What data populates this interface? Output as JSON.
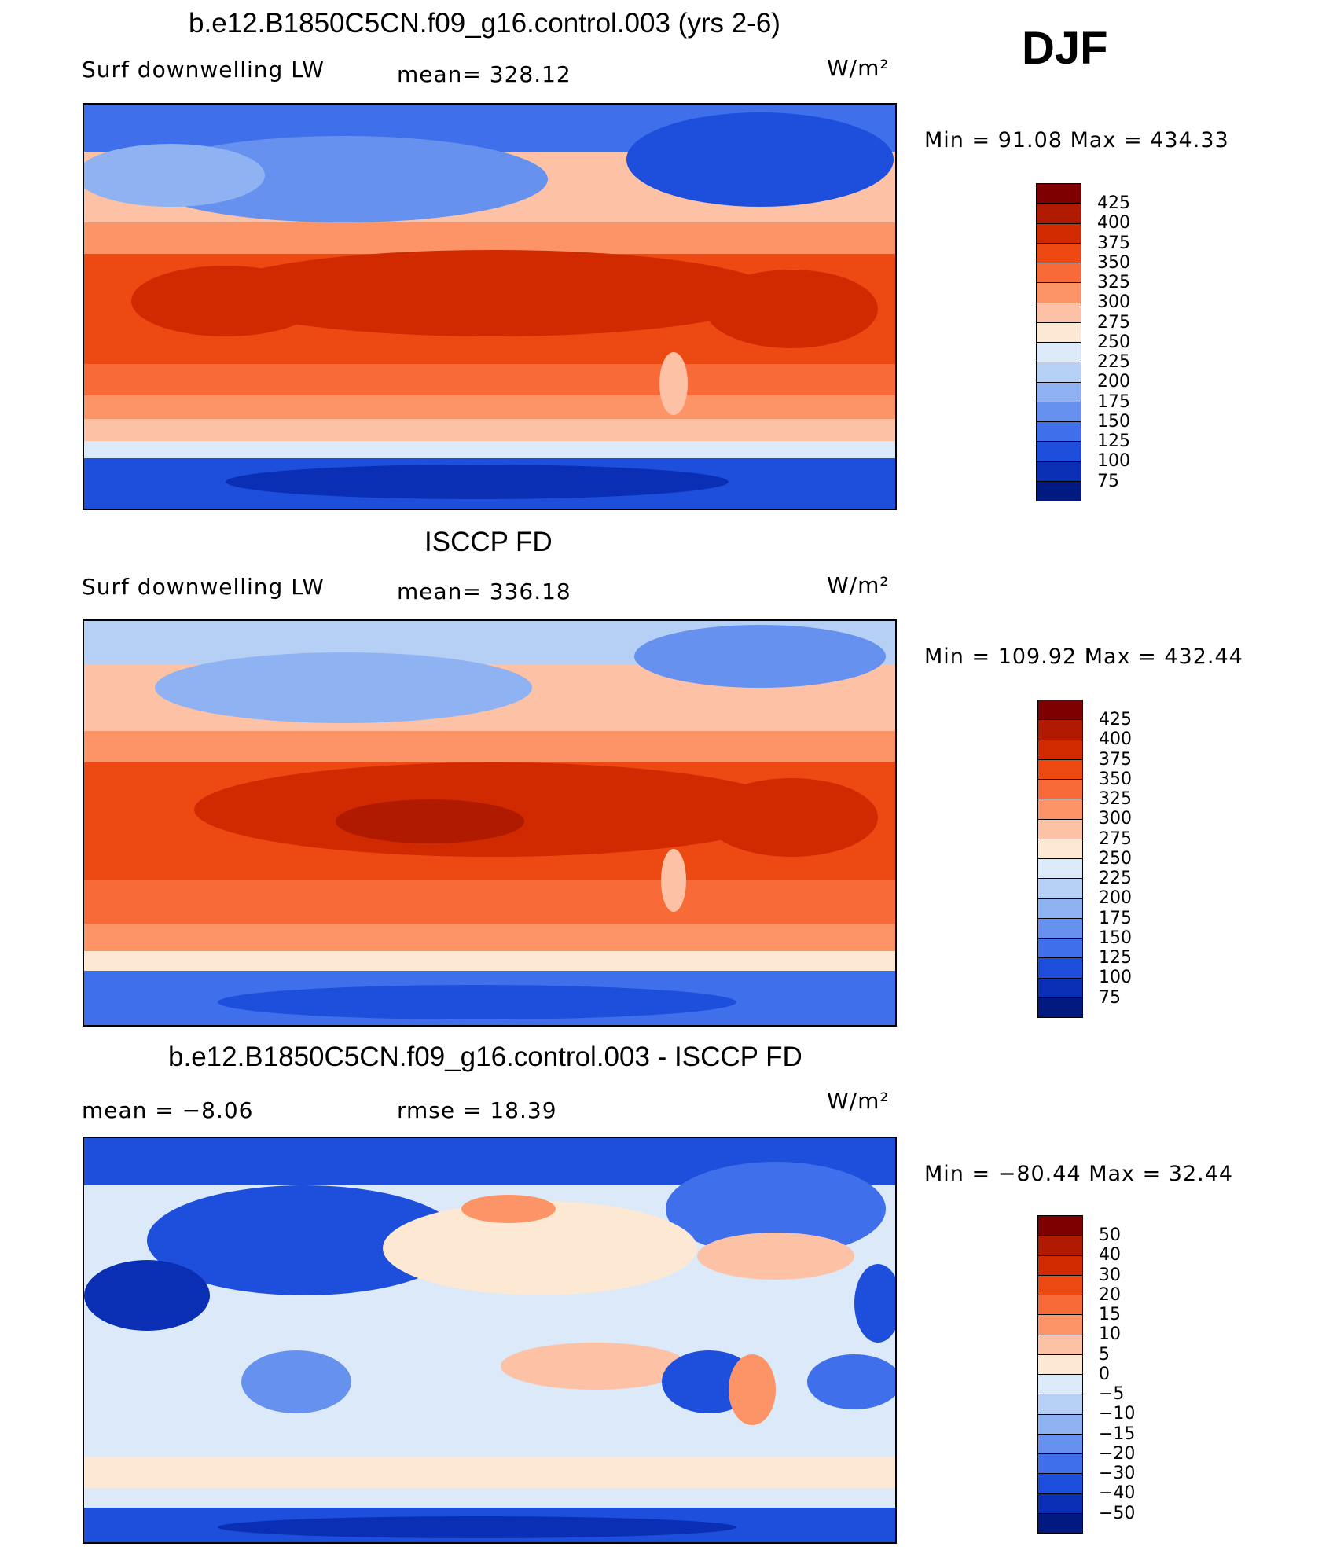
{
  "season": "DJF",
  "units": "W/m²",
  "panels": [
    {
      "title": "b.e12.B1850C5CN.f09_g16.control.003 (yrs 2-6)",
      "variable": "Surf downwelling LW",
      "stat_left": "",
      "stat_center": "mean=  328.12",
      "units": "W/m²",
      "minmax": "Min  =   91.08  Max  =  434.33"
    },
    {
      "title": "ISCCP FD",
      "variable": "Surf downwelling LW",
      "stat_left": "",
      "stat_center": "mean=  336.18",
      "units": "W/m²",
      "minmax": "Min  =  109.92  Max  =  432.44"
    },
    {
      "title": "b.e12.B1850C5CN.f09_g16.control.003 - ISCCP FD",
      "variable": "",
      "stat_left": "mean  =    −8.06",
      "stat_center": "rmse  =    18.39",
      "units": "W/m²",
      "minmax": "Min  =  −80.44  Max  =    32.44"
    }
  ],
  "colorbars": {
    "absolute": {
      "labels": [
        "425",
        "400",
        "375",
        "350",
        "325",
        "300",
        "275",
        "250",
        "225",
        "200",
        "175",
        "150",
        "125",
        "100",
        "75"
      ],
      "colors": [
        "#7f0000",
        "#b01a00",
        "#d22a00",
        "#ec4a12",
        "#f86a37",
        "#fc9468",
        "#fdc2a6",
        "#fde8d4",
        "#dbe9f8",
        "#b5cff5",
        "#8eb2f2",
        "#6691ee",
        "#3f6fea",
        "#1d4fdc",
        "#0a2fb4",
        "#001a80"
      ]
    },
    "difference": {
      "labels": [
        "50",
        "40",
        "30",
        "20",
        "15",
        "10",
        "5",
        "0",
        "−5",
        "−10",
        "−15",
        "−20",
        "−30",
        "−40",
        "−50"
      ],
      "colors": [
        "#7f0000",
        "#b01a00",
        "#d22a00",
        "#ec4a12",
        "#f86a37",
        "#fc9468",
        "#fdc2a6",
        "#fde8d4",
        "#dbe9f8",
        "#b5cff5",
        "#8eb2f2",
        "#6691ee",
        "#3f6fea",
        "#1d4fdc",
        "#0a2fb4",
        "#001a80"
      ]
    }
  }
}
